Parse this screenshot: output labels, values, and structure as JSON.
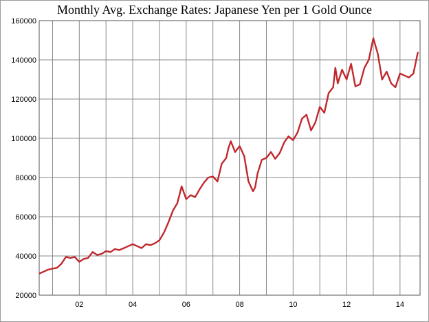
{
  "chart_data": {
    "type": "line",
    "title": "Monthly Avg. Exchange Rates: Japanese Yen per 1 Gold Ounce",
    "xlabel": "",
    "ylabel": "",
    "ylim": [
      20000,
      160000
    ],
    "xlim": [
      2000.5,
      2014.75
    ],
    "y_ticks": [
      20000,
      40000,
      60000,
      80000,
      100000,
      120000,
      140000,
      160000
    ],
    "y_tick_labels": [
      "20000",
      "40000",
      "60000",
      "80000",
      "100000",
      "120000",
      "140000",
      "160000"
    ],
    "x_ticks": [
      2002,
      2004,
      2006,
      2008,
      2010,
      2012,
      2014
    ],
    "x_tick_labels": [
      "02",
      "04",
      "06",
      "08",
      "10",
      "12",
      "14"
    ],
    "x_gridlines": [
      2001,
      2002,
      2003,
      2004,
      2005,
      2006,
      2007,
      2008,
      2009,
      2010,
      2011,
      2012,
      2013,
      2014
    ],
    "grid": true,
    "line_color": "#c0282d",
    "series": [
      {
        "x": [
          2000.5,
          2000.67,
          2000.83,
          2001.0,
          2001.17,
          2001.33,
          2001.5,
          2001.67,
          2001.83,
          2002.0,
          2002.17,
          2002.33,
          2002.5,
          2002.67,
          2002.83,
          2003.0,
          2003.17,
          2003.33,
          2003.5,
          2003.67,
          2003.83,
          2004.0,
          2004.17,
          2004.33,
          2004.5,
          2004.67,
          2004.83,
          2005.0,
          2005.17,
          2005.33,
          2005.5,
          2005.67,
          2005.83,
          2006.0,
          2006.17,
          2006.33,
          2006.42,
          2006.5,
          2006.67,
          2006.83,
          2007.0,
          2007.17,
          2007.33,
          2007.5,
          2007.58,
          2007.67,
          2007.83,
          2008.0,
          2008.17,
          2008.33,
          2008.5,
          2008.58,
          2008.67,
          2008.83,
          2009.0,
          2009.17,
          2009.33,
          2009.5,
          2009.67,
          2009.83,
          2010.0,
          2010.17,
          2010.33,
          2010.5,
          2010.67,
          2010.83,
          2011.0,
          2011.17,
          2011.33,
          2011.5,
          2011.58,
          2011.67,
          2011.83,
          2012.0,
          2012.17,
          2012.33,
          2012.5,
          2012.67,
          2012.83,
          2013.0,
          2013.17,
          2013.33,
          2013.5,
          2013.67,
          2013.83,
          2014.0,
          2014.17,
          2014.33,
          2014.5,
          2014.67
        ],
        "values": [
          31000,
          32000,
          33000,
          33500,
          34000,
          36000,
          39500,
          39000,
          39500,
          37000,
          38500,
          39000,
          42000,
          40500,
          41000,
          42500,
          42000,
          43500,
          43000,
          44000,
          45000,
          46000,
          45000,
          44000,
          46000,
          45500,
          46500,
          48000,
          52000,
          57000,
          63000,
          67000,
          75500,
          69000,
          71000,
          70000,
          72000,
          74000,
          77500,
          80000,
          80500,
          78000,
          87000,
          90000,
          95000,
          98500,
          93000,
          96000,
          91000,
          78000,
          73000,
          75000,
          82000,
          89000,
          90000,
          93000,
          89500,
          92500,
          98000,
          101000,
          99000,
          103000,
          110000,
          112000,
          104000,
          108000,
          116000,
          113000,
          123000,
          126000,
          136000,
          128000,
          135000,
          130000,
          138000,
          126500,
          127500,
          136000,
          140000,
          151000,
          143000,
          130000,
          134000,
          128000,
          126000,
          133000,
          132000,
          131000,
          133000,
          144000
        ]
      }
    ]
  }
}
